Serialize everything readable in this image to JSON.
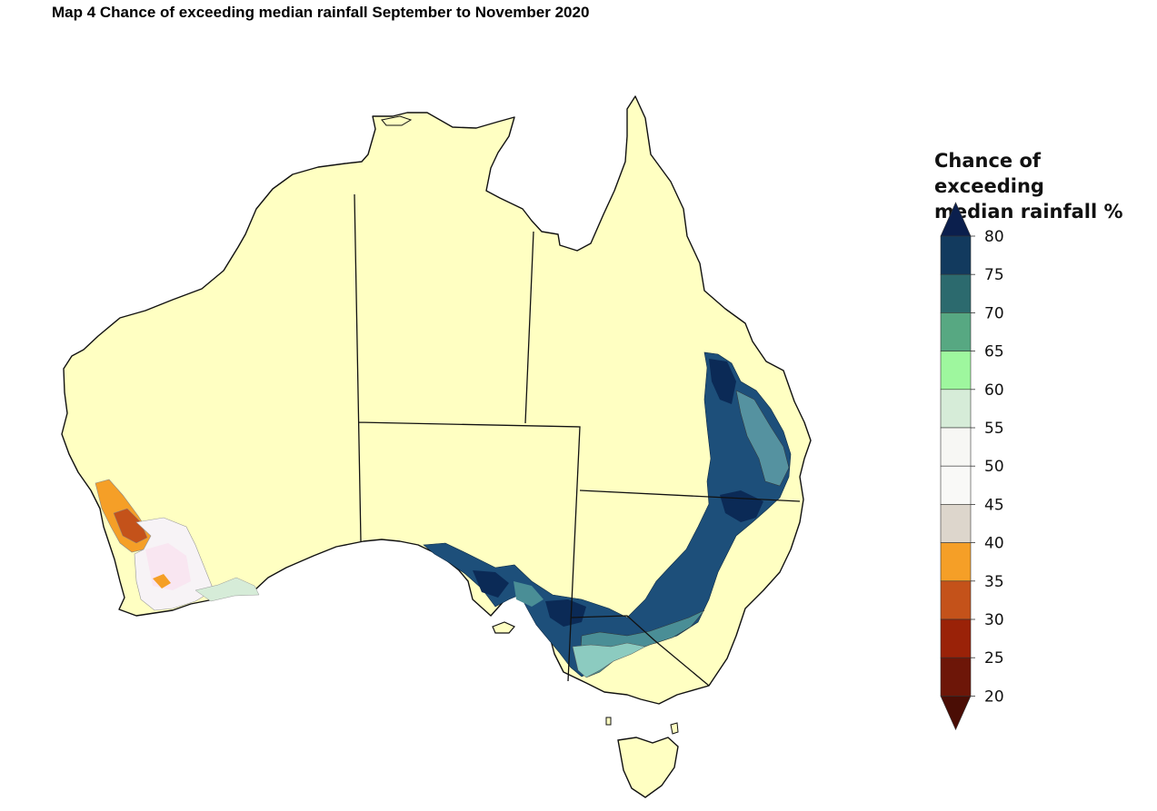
{
  "title": "Map 4 Chance of exceeding median rainfall September to November 2020",
  "legend": {
    "title_line1": "Chance of exceeding",
    "title_line2": "median rainfall %",
    "ticks": [
      "80",
      "75",
      "70",
      "65",
      "60",
      "55",
      "50",
      "45",
      "40",
      "35",
      "30",
      "25",
      "20"
    ],
    "bins_top_to_bottom": [
      {
        "range": ">80",
        "color": "#0b1f4d"
      },
      {
        "range": "75-80",
        "color": "#123a5e"
      },
      {
        "range": "70-75",
        "color": "#2c6a6e"
      },
      {
        "range": "65-70",
        "color": "#57a882"
      },
      {
        "range": "60-65",
        "color": "#9ef79e"
      },
      {
        "range": "55-60",
        "color": "#d6ecd8"
      },
      {
        "range": "50-55",
        "color": "#f7f7f4"
      },
      {
        "range": "45-50",
        "color": "#f9f9f7"
      },
      {
        "range": "40-45",
        "color": "#ddd6cc"
      },
      {
        "range": "35-40",
        "color": "#f59f27"
      },
      {
        "range": "30-35",
        "color": "#c4521a"
      },
      {
        "range": "25-30",
        "color": "#9a2208"
      },
      {
        "range": "20-25",
        "color": "#6d1608"
      },
      {
        "range": "<20",
        "color": "#4a0d05"
      }
    ]
  },
  "map": {
    "land_color": "#ffffc2",
    "region": "Australia"
  }
}
